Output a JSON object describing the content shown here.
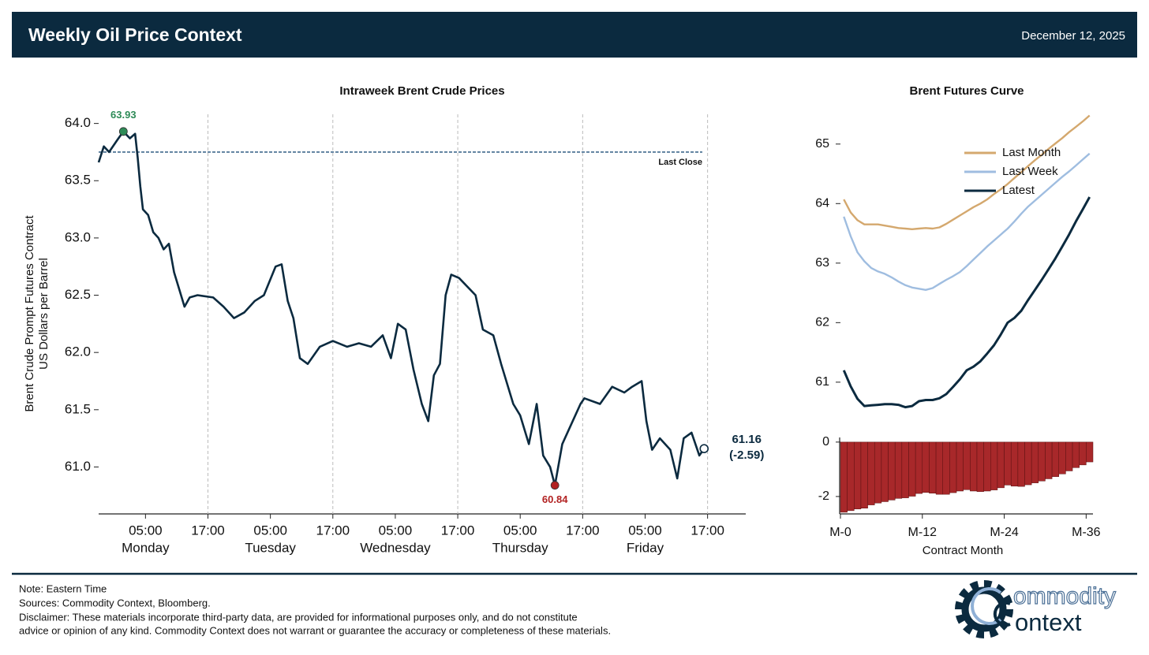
{
  "header": {
    "title": "Weekly Oil Price Context",
    "date": "December 12, 2025"
  },
  "chart_data": [
    {
      "type": "line",
      "title": "Intraweek Brent Crude Prices",
      "ylabel": [
        "Brent Crude Prompt Futures Contract",
        "US Dollars per Barrel"
      ],
      "color": "#0b2a3f",
      "x": [
        "Sunday 20:00",
        "Sunday 21:00",
        "Sunday 22:00",
        "Sunday 23:30",
        "Monday 00:45",
        "Monday 02:00",
        "Monday 03:00",
        "Monday 03:30",
        "Monday 04:00",
        "Monday 04:30",
        "Monday 05:30",
        "Monday 06:30",
        "Monday 07:30",
        "Monday 08:30",
        "Monday 09:30",
        "Monday 10:30",
        "Monday 11:30",
        "Monday 12:30",
        "Monday 13:30",
        "Monday 15:00",
        "Monday 18:00",
        "Monday 20:00",
        "Monday 22:00",
        "Tuesday 00:00",
        "Tuesday 02:00",
        "Tuesday 03:45",
        "Tuesday 06:00",
        "Tuesday 07:10",
        "Tuesday 08:20",
        "Tuesday 09:25",
        "Tuesday 10:40",
        "Tuesday 12:10",
        "Tuesday 14:30",
        "Tuesday 17:00",
        "Tuesday 19:45",
        "Tuesday 22:00",
        "Wednesday 00:20",
        "Wednesday 02:35",
        "Wednesday 04:10",
        "Wednesday 05:30",
        "Wednesday 07:00",
        "Wednesday 08:30",
        "Wednesday 10:05",
        "Wednesday 11:20",
        "Wednesday 12:25",
        "Wednesday 13:35",
        "Wednesday 14:40",
        "Wednesday 15:45",
        "Wednesday 17:15",
        "Wednesday 20:25",
        "Wednesday 21:50",
        "Wednesday 23:50",
        "Thursday 01:20",
        "Thursday 03:40",
        "Thursday 05:00",
        "Thursday 06:40",
        "Thursday 08:10",
        "Thursday 09:25",
        "Thursday 10:45",
        "Thursday 11:40",
        "Thursday 13:05",
        "Thursday 14:35",
        "Thursday 16:35",
        "Thursday 17:20",
        "Thursday 20:20",
        "Thursday 22:40",
        "Friday 01:00",
        "Friday 02:30",
        "Friday 04:20",
        "Friday 05:15",
        "Friday 06:20",
        "Friday 07:50",
        "Friday 09:50",
        "Friday 11:10",
        "Friday 12:25",
        "Friday 13:55",
        "Friday 15:25",
        "Friday 16:20"
      ],
      "values": [
        63.66,
        63.8,
        63.75,
        63.85,
        63.93,
        63.87,
        63.91,
        63.7,
        63.45,
        63.25,
        63.2,
        63.05,
        63.0,
        62.9,
        62.95,
        62.7,
        62.55,
        62.4,
        62.48,
        62.5,
        62.48,
        62.4,
        62.3,
        62.35,
        62.45,
        62.5,
        62.75,
        62.77,
        62.45,
        62.3,
        61.95,
        61.9,
        62.05,
        62.1,
        62.05,
        62.08,
        62.05,
        62.15,
        61.95,
        62.25,
        62.2,
        61.85,
        61.55,
        61.4,
        61.8,
        61.9,
        62.5,
        62.68,
        62.65,
        62.5,
        62.2,
        62.15,
        61.9,
        61.55,
        61.45,
        61.2,
        61.55,
        61.1,
        61.0,
        60.84,
        61.2,
        61.35,
        61.55,
        61.6,
        61.55,
        61.7,
        61.65,
        61.7,
        61.75,
        61.4,
        61.15,
        61.25,
        61.15,
        60.9,
        61.25,
        61.3,
        61.1,
        61.16
      ],
      "xlim": [
        "Sunday 20:00",
        "Saturday 00:20"
      ],
      "xticks": [
        {
          "value": "Monday 05:00",
          "label": [
            "05:00",
            "Monday"
          ]
        },
        {
          "value": "Monday 17:00",
          "label": "17:00"
        },
        {
          "value": "Tuesday 05:00",
          "label": [
            "05:00",
            "Tuesday"
          ]
        },
        {
          "value": "Tuesday 17:00",
          "label": "17:00"
        },
        {
          "value": "Wednesday 05:00",
          "label": [
            "05:00",
            "Wednesday"
          ]
        },
        {
          "value": "Wednesday 17:00",
          "label": "17:00"
        },
        {
          "value": "Thursday 05:00",
          "label": [
            "05:00",
            "Thursday"
          ]
        },
        {
          "value": "Thursday 17:00",
          "label": "17:00"
        },
        {
          "value": "Friday 05:00",
          "label": [
            "05:00",
            "Friday"
          ]
        },
        {
          "value": "Friday 17:00",
          "label": "17:00"
        }
      ],
      "ylim": [
        60.59,
        64.08
      ],
      "yticks": [
        {
          "value": 61,
          "label": "61.0"
        },
        61.5,
        {
          "value": 62,
          "label": "62.0"
        },
        62.5,
        {
          "value": 63,
          "label": "63.0"
        },
        63.5,
        {
          "value": 64,
          "label": "64.0"
        }
      ],
      "xgrid": "dashed",
      "reference_line": {
        "value": 63.75,
        "label": "Last Close",
        "color": "#1f4e79"
      },
      "annotations": [
        {
          "x": "Monday 00:45",
          "value": 63.93,
          "color": "#2e8b57"
        },
        {
          "x": "Thursday 11:40",
          "value": 60.84,
          "color": "#b22222"
        },
        {
          "x": "Friday 16:20",
          "value": 61.16,
          "change": -2.59,
          "change_label": "(-2.59)"
        }
      ]
    },
    {
      "type": "line",
      "title": "Brent Futures Curve",
      "series": [
        {
          "name": "Last Month",
          "color": "#d4a86e",
          "values": [
            64.07,
            63.85,
            63.72,
            63.65,
            63.65,
            63.65,
            63.63,
            63.61,
            63.59,
            63.58,
            63.57,
            63.58,
            63.59,
            63.58,
            63.6,
            63.66,
            63.73,
            63.8,
            63.87,
            63.94,
            64.0,
            64.07,
            64.16,
            64.24,
            64.33,
            64.43,
            64.53,
            64.63,
            64.73,
            64.82,
            64.92,
            65.01,
            65.1,
            65.2,
            65.29,
            65.38,
            65.48
          ]
        },
        {
          "name": "Last Week",
          "color": "#9fbde0",
          "values": [
            63.78,
            63.45,
            63.18,
            63.03,
            62.92,
            62.86,
            62.82,
            62.76,
            62.69,
            62.63,
            62.59,
            62.57,
            62.55,
            62.58,
            62.65,
            62.72,
            62.78,
            62.85,
            62.95,
            63.06,
            63.17,
            63.28,
            63.38,
            63.48,
            63.58,
            63.7,
            63.83,
            63.95,
            64.05,
            64.15,
            64.25,
            64.35,
            64.45,
            64.54,
            64.64,
            64.74,
            64.84
          ]
        },
        {
          "name": "Latest",
          "color": "#0b2a3f",
          "values": [
            61.2,
            60.93,
            60.72,
            60.6,
            60.61,
            60.62,
            60.63,
            60.63,
            60.62,
            60.58,
            60.6,
            60.68,
            60.7,
            60.7,
            60.73,
            60.8,
            60.92,
            61.05,
            61.2,
            61.26,
            61.35,
            61.48,
            61.62,
            61.8,
            62.0,
            62.08,
            62.2,
            62.38,
            62.55,
            62.72,
            62.9,
            63.08,
            63.28,
            63.48,
            63.7,
            63.9,
            64.11
          ]
        }
      ],
      "ylim": [
        60.27,
        65.5
      ],
      "yticks": [
        61,
        62,
        63,
        64,
        65
      ],
      "legend": "upper right"
    },
    {
      "type": "bar",
      "xlabel": "Contract Month",
      "color": "#a8282a",
      "categories": [
        "M-0",
        null,
        null,
        null,
        null,
        null,
        null,
        null,
        null,
        null,
        null,
        null,
        "M-12",
        null,
        null,
        null,
        null,
        null,
        null,
        null,
        null,
        null,
        null,
        null,
        "M-24",
        null,
        null,
        null,
        null,
        null,
        null,
        null,
        null,
        null,
        null,
        null,
        "M-36"
      ],
      "values": [
        -2.58,
        -2.52,
        -2.46,
        -2.43,
        -2.31,
        -2.24,
        -2.19,
        -2.13,
        -2.07,
        -2.05,
        -1.99,
        -1.89,
        -1.85,
        -1.88,
        -1.92,
        -1.92,
        -1.86,
        -1.8,
        -1.75,
        -1.8,
        -1.82,
        -1.8,
        -1.76,
        -1.68,
        -1.58,
        -1.62,
        -1.63,
        -1.57,
        -1.5,
        -1.43,
        -1.35,
        -1.27,
        -1.17,
        -1.06,
        -0.94,
        -0.84,
        -0.73
      ],
      "ylim": [
        -2.64,
        0.17
      ],
      "yticks": [
        -2,
        0
      ]
    }
  ],
  "footer": {
    "note": "Note: Eastern Time",
    "sources": "Sources: Commodity Context, Bloomberg.",
    "disclaimer": [
      "Disclaimer: These materials incorporate third-party data, are provided for informational purposes only, and do not constitute",
      "advice or opinion of any kind. Commodity Context does not warrant or guarantee the accuracy or completeness of these materials."
    ]
  },
  "logo": {
    "line1": "ommodity",
    "line2": "ontext"
  }
}
